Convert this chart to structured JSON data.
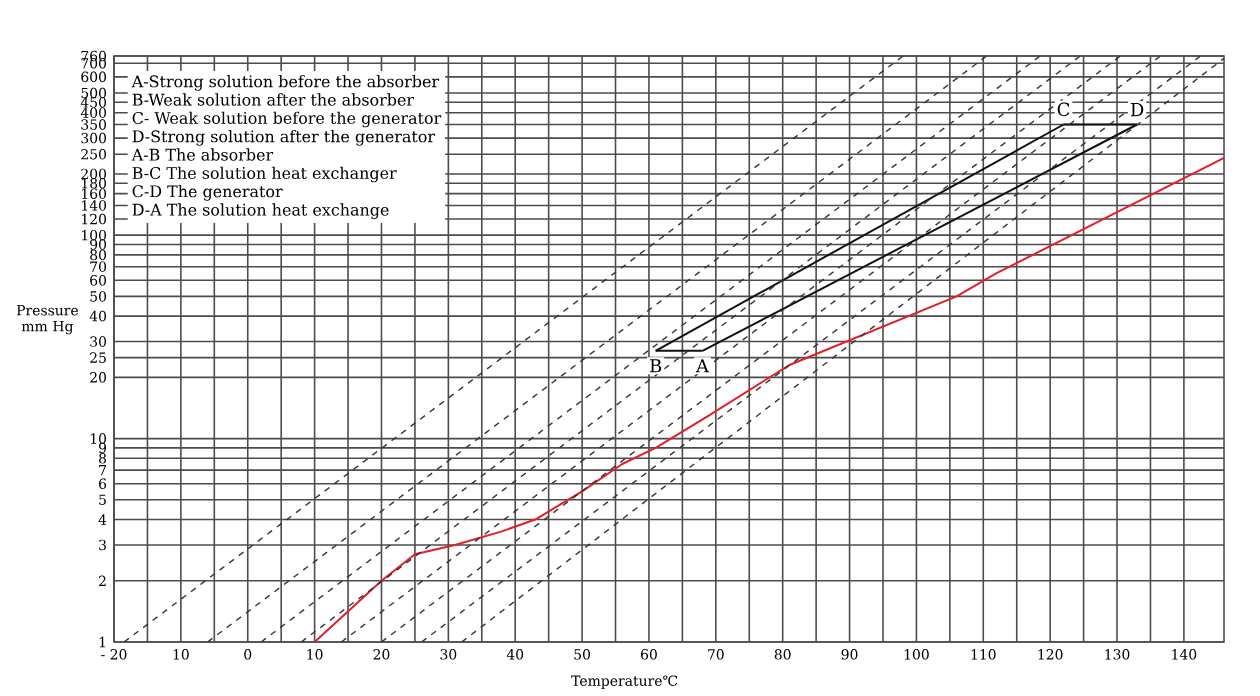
{
  "chart_data": {
    "type": "line",
    "xlabel": "Temperature℃",
    "ylabel": "Pressure mm Hg",
    "xlim": [
      -20,
      146
    ],
    "ylim": [
      1,
      760
    ],
    "log": "y",
    "grid": true,
    "marker": "none",
    "xticks": [
      {
        "value": -20,
        "label": "- 20"
      },
      {
        "value": -15,
        "label": null
      },
      {
        "value": -10,
        "label": "10"
      },
      {
        "value": -5,
        "label": null
      },
      0,
      {
        "value": 5,
        "label": null
      },
      10,
      {
        "value": 15,
        "label": null
      },
      20,
      {
        "value": 25,
        "label": null
      },
      30,
      {
        "value": 35,
        "label": null
      },
      40,
      {
        "value": 45,
        "label": null
      },
      50,
      {
        "value": 55,
        "label": null
      },
      60,
      {
        "value": 65,
        "label": null
      },
      70,
      {
        "value": 75,
        "label": null
      },
      80,
      {
        "value": 85,
        "label": null
      },
      90,
      {
        "value": 95,
        "label": null
      },
      100,
      {
        "value": 105,
        "label": null
      },
      110,
      {
        "value": 115,
        "label": null
      },
      120,
      {
        "value": 125,
        "label": null
      },
      130,
      {
        "value": 135,
        "label": null
      },
      140
    ],
    "yticks": [
      1,
      2,
      3,
      4,
      5,
      6,
      7,
      8,
      9,
      10,
      20,
      25,
      30,
      40,
      50,
      60,
      70,
      80,
      90,
      100,
      120,
      140,
      160,
      180,
      200,
      250,
      300,
      350,
      400,
      450,
      500,
      600,
      700,
      760
    ],
    "series": [
      {
        "color": "#e0202a",
        "line_style": "solid",
        "x": [
          10,
          20,
          25,
          31,
          38,
          43,
          50,
          56,
          61,
          69,
          81,
          106,
          112,
          146
        ],
        "values": [
          1,
          2,
          2.7,
          3,
          3.5,
          4,
          5.5,
          7.5,
          9,
          13,
          23,
          50,
          65,
          240
        ]
      },
      {
        "color": "#111111",
        "line_style": "solid",
        "x": [
          61,
          68
        ],
        "values": [
          27,
          27
        ]
      },
      {
        "color": "#111111",
        "line_style": "solid",
        "x": [
          61,
          122
        ],
        "values": [
          27,
          350
        ]
      },
      {
        "color": "#111111",
        "line_style": "solid",
        "x": [
          122,
          133
        ],
        "values": [
          350,
          350
        ]
      },
      {
        "color": "#111111",
        "line_style": "solid",
        "x": [
          68,
          133
        ],
        "values": [
          27,
          350
        ]
      },
      {
        "color": "#333333",
        "line_style": "dashed",
        "x": [
          -18.5,
          98
        ],
        "values": [
          1,
          760
        ]
      },
      {
        "color": "#333333",
        "line_style": "dashed",
        "x": [
          -6,
          110.5
        ],
        "values": [
          1,
          760
        ]
      },
      {
        "color": "#333333",
        "line_style": "dashed",
        "x": [
          2,
          118.5
        ],
        "values": [
          1,
          760
        ]
      },
      {
        "color": "#333333",
        "line_style": "dashed",
        "x": [
          8,
          124.5
        ],
        "values": [
          1,
          760
        ]
      },
      {
        "color": "#333333",
        "line_style": "dashed",
        "x": [
          14,
          130.5
        ],
        "values": [
          1,
          760
        ]
      },
      {
        "color": "#333333",
        "line_style": "dashed",
        "x": [
          20,
          136.5
        ],
        "values": [
          1,
          760
        ]
      },
      {
        "color": "#333333",
        "line_style": "dashed",
        "x": [
          26,
          142.5
        ],
        "values": [
          1,
          760
        ]
      },
      {
        "color": "#333333",
        "line_style": "dashed",
        "x": [
          32,
          146
        ],
        "values": [
          1,
          740
        ]
      }
    ],
    "annotations": [
      "A-Strong solution before the absorber",
      "B-Weak solution after the absorber",
      "C- Weak solution before the generator",
      "D-Strong solution after the generator",
      "A-B The absorber",
      "B-C The solution heat exchanger",
      "C-D The generator",
      "D-A The solution heat exchange",
      {
        "text": "A",
        "x": 68,
        "y": 27
      },
      {
        "text": "B",
        "x": 61,
        "y": 27
      },
      {
        "text": "C",
        "x": 122,
        "y": 350
      },
      {
        "text": "D",
        "x": 133,
        "y": 350
      }
    ]
  }
}
